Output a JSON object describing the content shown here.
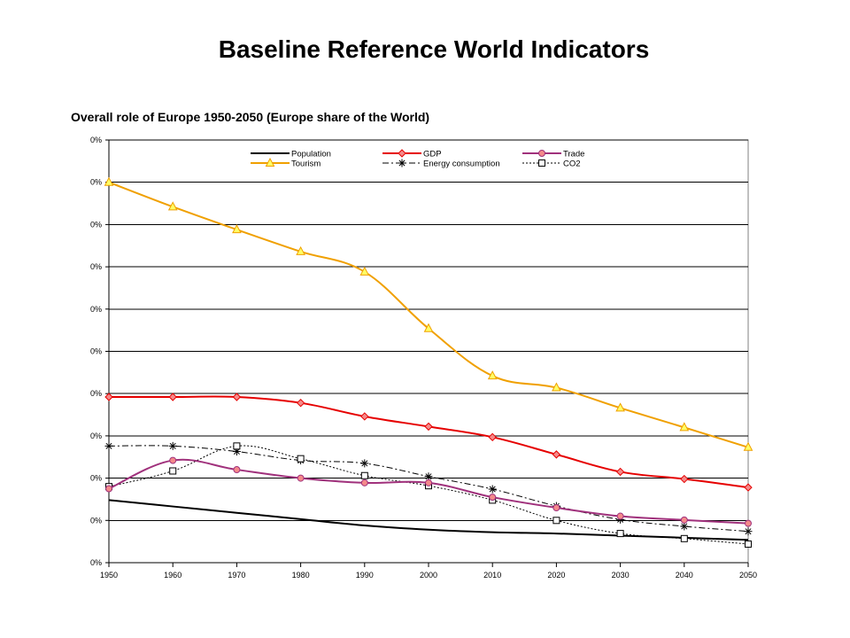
{
  "slide": {
    "title": "Baseline Reference World Indicators"
  },
  "chart_data": {
    "type": "line",
    "title": "Overall role of Europe 1950-2050 (Europe share of the World)",
    "xlabel": "",
    "ylabel": "",
    "x": [
      1950,
      1960,
      1970,
      1980,
      1990,
      2000,
      2010,
      2020,
      2030,
      2040,
      2050
    ],
    "x_tick_labels": [
      "1950",
      "1960",
      "1970",
      "1980",
      "1990",
      "2000",
      "2010",
      "2020",
      "2030",
      "2040",
      "2050"
    ],
    "y_tick_labels": [
      "0%",
      "0%",
      "0%",
      "0%",
      "0%",
      "0%",
      "0%",
      "0%",
      "0%",
      "0%",
      "0%"
    ],
    "ylim": [
      0,
      10
    ],
    "xlim": [
      1950,
      2050
    ],
    "grid": "horizontal",
    "legend_placement": "top",
    "series": [
      {
        "name": "Population",
        "color": "#000000",
        "dash": "solid",
        "marker": "none",
        "values": [
          1.48,
          1.33,
          1.18,
          1.03,
          0.88,
          0.78,
          0.72,
          0.69,
          0.64,
          0.59,
          0.54
        ]
      },
      {
        "name": "GDP",
        "color": "#e60000",
        "dash": "solid",
        "marker": "diamond",
        "values": [
          3.92,
          3.92,
          3.92,
          3.78,
          3.46,
          3.22,
          2.97,
          2.56,
          2.15,
          1.98,
          1.78
        ]
      },
      {
        "name": "Trade",
        "color": "#a0317c",
        "dash": "solid",
        "marker": "circle",
        "values": [
          1.75,
          2.42,
          2.2,
          2.0,
          1.89,
          1.89,
          1.55,
          1.3,
          1.1,
          1.01,
          0.93
        ]
      },
      {
        "name": "Tourism",
        "color": "#f0a000",
        "dash": "solid",
        "marker": "triangle",
        "values": [
          9.0,
          8.42,
          7.88,
          7.36,
          6.88,
          5.54,
          4.42,
          4.14,
          3.66,
          3.2,
          2.73
        ]
      },
      {
        "name": "Energy consumption",
        "color": "#000000",
        "dash": "dashdot",
        "marker": "star",
        "values": [
          2.76,
          2.76,
          2.63,
          2.42,
          2.35,
          2.04,
          1.74,
          1.34,
          1.02,
          0.86,
          0.74
        ]
      },
      {
        "name": "CO2",
        "color": "#000000",
        "dash": "dotted",
        "marker": "square",
        "values": [
          1.8,
          2.17,
          2.76,
          2.46,
          2.06,
          1.82,
          1.48,
          1.0,
          0.69,
          0.57,
          0.44
        ]
      }
    ]
  }
}
